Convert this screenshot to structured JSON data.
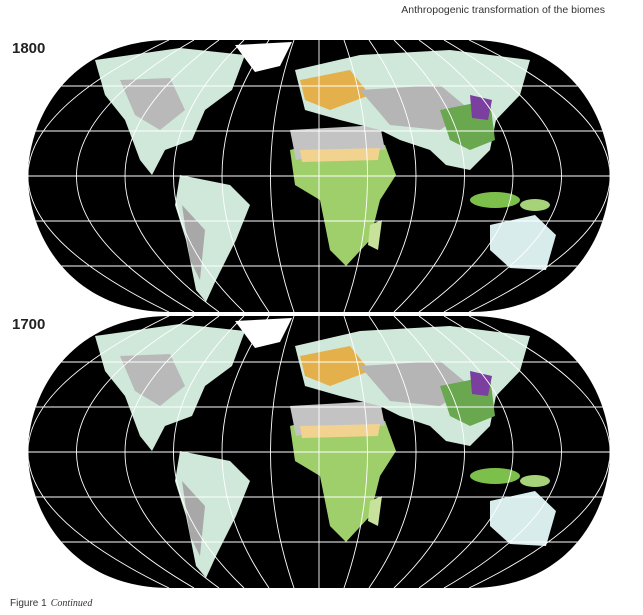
{
  "header": {
    "title": "Anthropogenic transformation of the biomes"
  },
  "maps": [
    {
      "label": "1800"
    },
    {
      "label": "1700"
    }
  ],
  "caption": {
    "label": "Figure 1",
    "note": "Continued"
  }
}
